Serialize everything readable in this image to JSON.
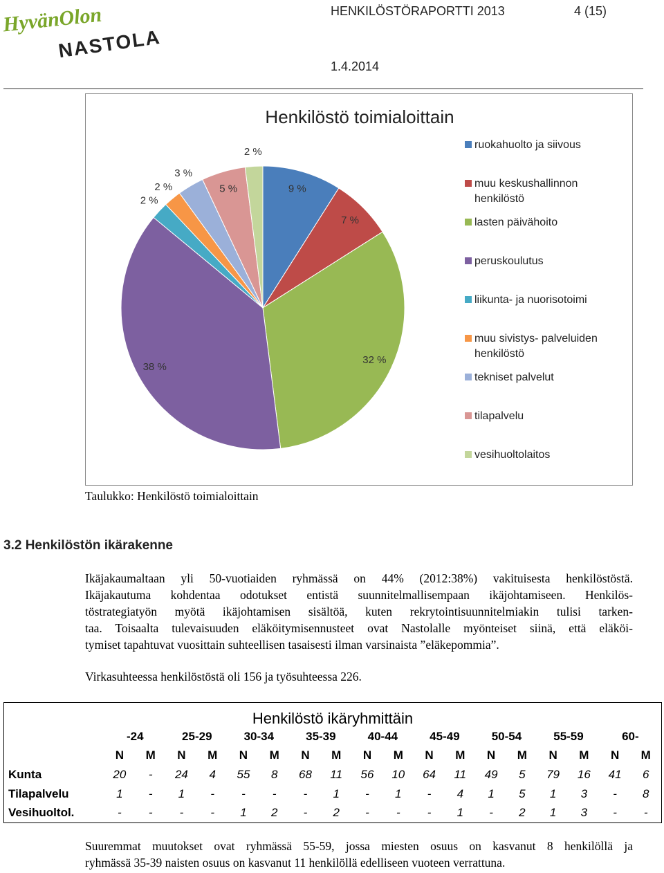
{
  "header": {
    "logo_script": "HyvänOlon",
    "logo_name": "NASTOLA",
    "title": "HENKILÖSTÖRAPORTTI 2013",
    "page": "4 (15)",
    "date": "1.4.2014"
  },
  "chart_data": {
    "type": "pie",
    "title": "Henkilöstö toimialoittain",
    "categories": [
      "ruokahuolto ja siivous",
      "muu keskushallinnon henkilöstö",
      "lasten päivähoito",
      "peruskoulutus",
      "liikunta- ja nuorisotoimi",
      "muu sivistys- palveluiden henkilöstö",
      "tekniset palvelut",
      "tilapalvelu",
      "vesihuoltolaitos"
    ],
    "values": [
      9,
      7,
      32,
      38,
      2,
      2,
      3,
      5,
      2
    ],
    "value_labels": [
      "9 %",
      "7 %",
      "32 %",
      "38 %",
      "2 %",
      "2 %",
      "3 %",
      "5 %",
      "2 %"
    ],
    "colors": [
      "#4a7ebb",
      "#be4b48",
      "#98b954",
      "#7d60a0",
      "#46aac5",
      "#f79646",
      "#9bb0d9",
      "#d99694",
      "#c3d69b"
    ],
    "legend": "right"
  },
  "caption": "Taulukko: Henkilöstö toimialoittain",
  "section": {
    "heading": "3.2 Henkilöstön ikärakenne",
    "paragraph_lines": [
      "Ikäjakaumaltaan yli 50-vuotiaiden ryhmässä on 44% (2012:38%) vakituisesta henkilöstöstä.",
      "Ikäjakautuma kohdentaa odotukset entistä suunnitelmallisempaan ikäjohtamiseen. Henkilös-",
      "töstrategiatyön myötä ikäjohtamisen sisältöä, kuten rekrytointisuunnitelmiakin tulisi tarken-",
      "taa. Toisaalta tulevaisuuden eläköitymisennusteet ovat Nastolalle myönteiset siinä, että eläköi-",
      "tymiset tapahtuvat vuosittain suhteellisen tasaisesti ilman varsinaista ”eläkepommia”."
    ],
    "paragraph2": "Virkasuhteessa henkilöstöstä oli 156 ja työsuhteessa 226."
  },
  "table": {
    "title": "Henkilöstö ikäryhmittäin",
    "age_groups": [
      "-24",
      "25-29",
      "30-34",
      "35-39",
      "40-44",
      "45-49",
      "50-54",
      "55-59",
      "60-"
    ],
    "sub_headers": [
      "N",
      "M",
      "N",
      "M",
      "N",
      "M",
      "N",
      "M",
      "N",
      "M",
      "N",
      "M",
      "N",
      "M",
      "N",
      "M",
      "N",
      "M"
    ],
    "rows": [
      [
        "Kunta",
        20,
        "-",
        24,
        4,
        55,
        8,
        68,
        11,
        56,
        10,
        64,
        11,
        49,
        5,
        79,
        16,
        41,
        6
      ],
      [
        "Tilapalvelu",
        1,
        "-",
        1,
        "-",
        "-",
        "-",
        "-",
        1,
        "-",
        1,
        "-",
        4,
        1,
        5,
        1,
        3,
        "-",
        8
      ],
      [
        "Vesihuoltol.",
        "-",
        "-",
        "-",
        "-",
        1,
        2,
        "-",
        2,
        "-",
        "-",
        "-",
        1,
        "-",
        2,
        1,
        3,
        "-",
        "-"
      ]
    ]
  },
  "closing_lines": [
    "Suuremmat muutokset ovat ryhmässä 55-59, jossa miesten osuus on kasvanut 8 henkilöllä ja",
    "ryhmässä 35-39 naisten osuus on kasvanut 11 henkilöllä edelliseen vuoteen verrattuna."
  ]
}
